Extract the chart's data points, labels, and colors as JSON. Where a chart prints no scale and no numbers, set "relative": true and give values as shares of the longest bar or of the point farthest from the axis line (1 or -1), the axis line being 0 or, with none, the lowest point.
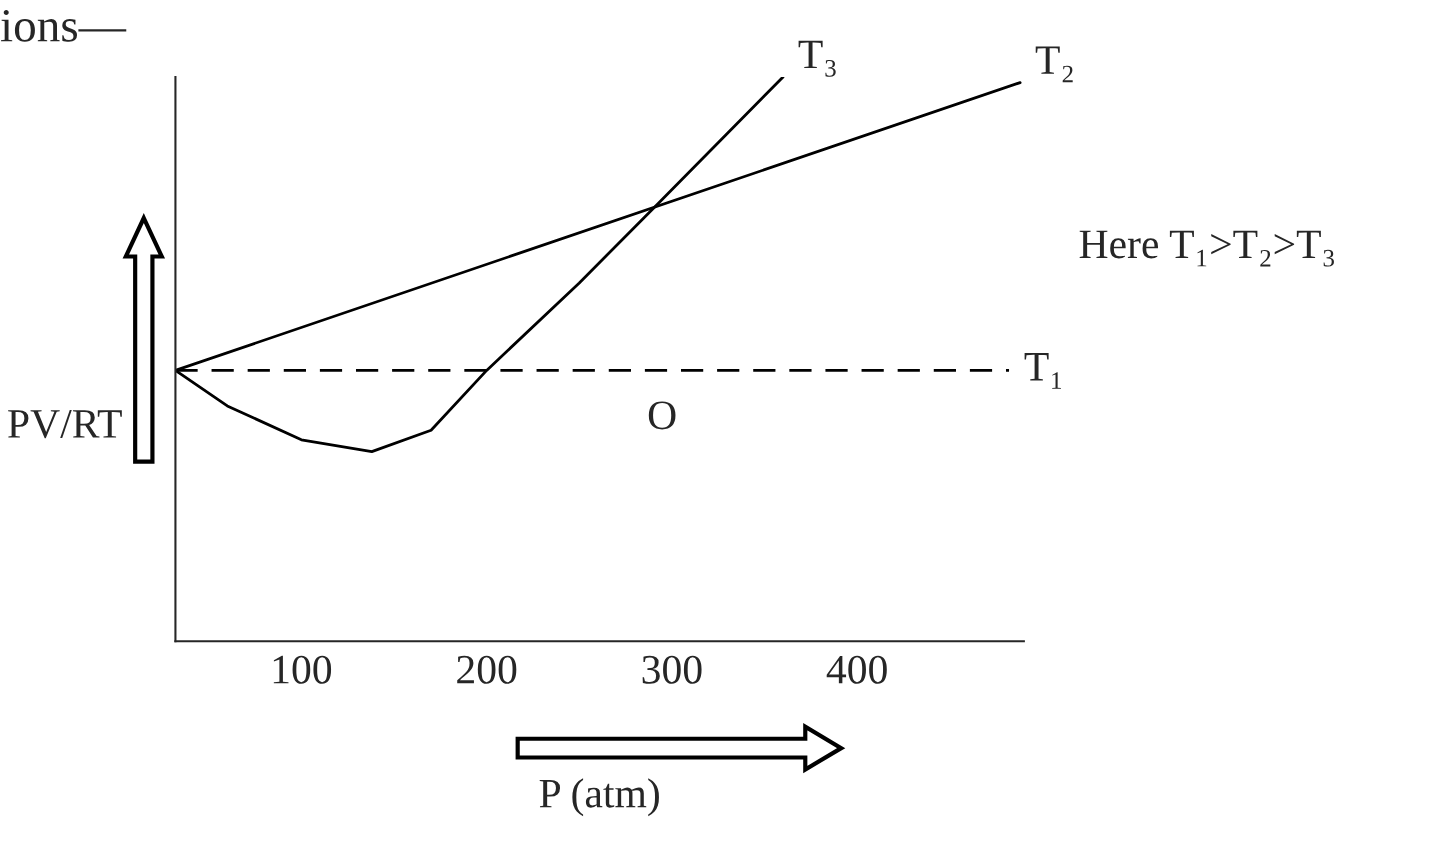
{
  "chart_data": {
    "type": "line",
    "title": "ions—",
    "xlabel": "P (atm)",
    "ylabel": "PV/RT",
    "relative": true,
    "xlim": [
      32,
      490
    ],
    "xticks": [
      100,
      200,
      300,
      400
    ],
    "grid": false,
    "legend": false,
    "series": [
      {
        "name": "T₃",
        "color": "#000000",
        "line_style": "solid",
        "x": [
          32,
          60,
          100,
          138,
          170,
          200,
          250,
          293,
          360
        ],
        "values": [
          0.48,
          0.417,
          0.357,
          0.336,
          0.374,
          0.48,
          0.635,
          0.777,
          1.0
        ]
      },
      {
        "name": "T₂",
        "color": "#000000",
        "line_style": "solid",
        "x": [
          32,
          488
        ],
        "values": [
          0.48,
          0.99
        ]
      },
      {
        "name": "T₁",
        "color": "#000000",
        "line_style": "dashed",
        "x": [
          32,
          482
        ],
        "values": [
          0.48,
          0.48
        ]
      }
    ],
    "annotations": [
      "O",
      "Here T₁>T₂>T₃"
    ]
  }
}
